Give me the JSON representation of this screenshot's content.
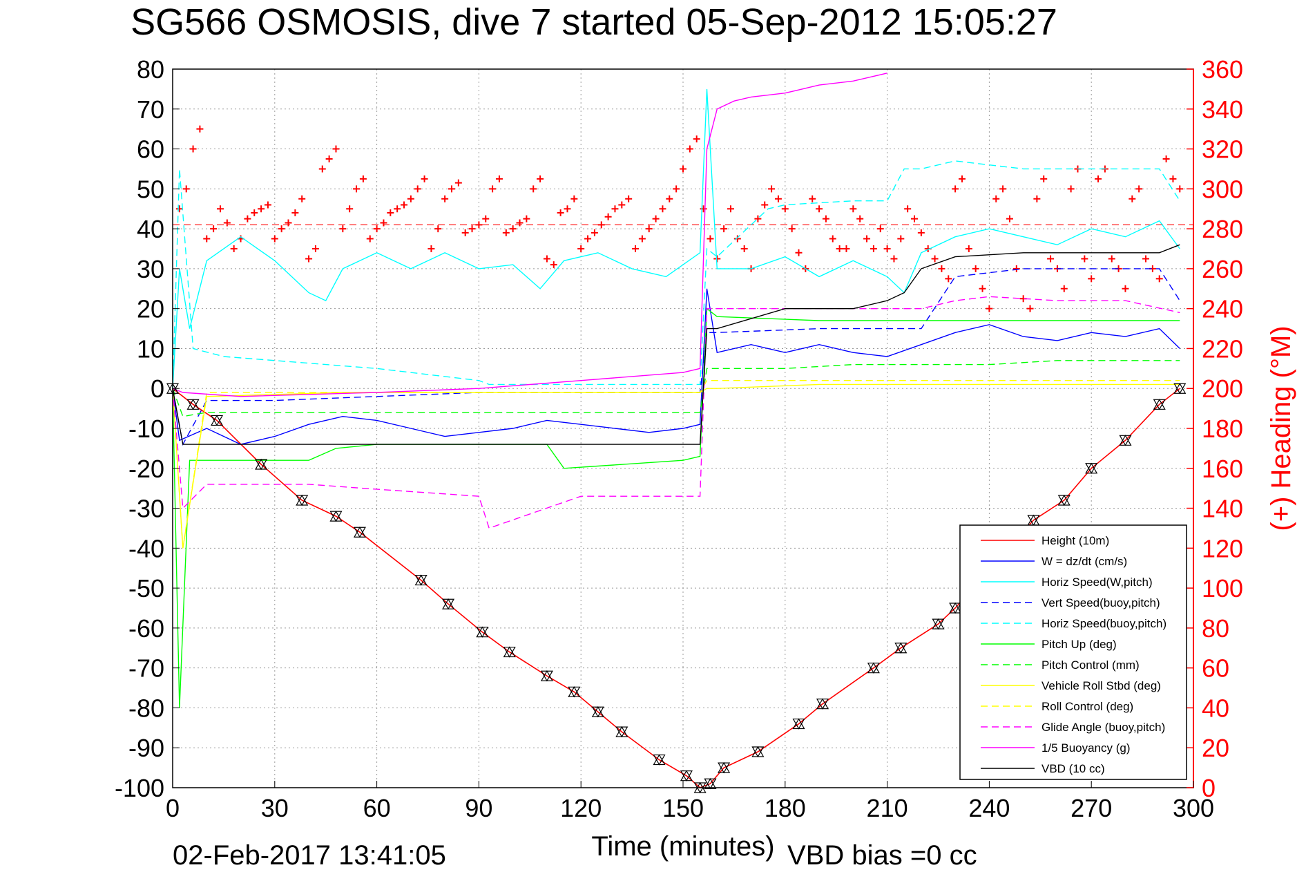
{
  "chart_data": {
    "type": "line",
    "title": "SG566 OSMOSIS, dive 7 started 05-Sep-2012 15:05:27",
    "xlabel": "Time (minutes)",
    "ylabel_right": "(+) Heading (°M)",
    "footer_left": "02-Feb-2017 13:41:05",
    "footer_right": "VBD bias =0 cc",
    "xlim": [
      0,
      300
    ],
    "ylim_left": [
      -100,
      80
    ],
    "ylim_right": [
      0,
      360
    ],
    "x_ticks": [
      "0",
      "30",
      "60",
      "90",
      "120",
      "150",
      "180",
      "210",
      "240",
      "270",
      "300"
    ],
    "y_ticks_left": [
      "80",
      "70",
      "60",
      "50",
      "40",
      "30",
      "20",
      "10",
      "0",
      "-10",
      "-20",
      "-30",
      "-40",
      "-50",
      "-60",
      "-70",
      "-80",
      "-90",
      "-100"
    ],
    "y_ticks_right": [
      "360",
      "340",
      "320",
      "300",
      "280",
      "260",
      "240",
      "220",
      "200",
      "180",
      "160",
      "140",
      "120",
      "100",
      "80",
      "60",
      "40",
      "20",
      "0"
    ],
    "grid": true,
    "legend_position": "bottom-right",
    "colors": {
      "red": "#ff0000",
      "blue": "#0000ff",
      "cyan": "#00ffff",
      "green": "#00ff00",
      "yellow": "#ffff00",
      "magenta": "#ff00ff",
      "black": "#000000"
    },
    "series": [
      {
        "name": "Height (10m)",
        "color": "#ff0000",
        "dash": false,
        "x": [
          0,
          6,
          13,
          26,
          38,
          48,
          55,
          73,
          81,
          91,
          99,
          110,
          118,
          125,
          132,
          143,
          151,
          155,
          158,
          162,
          172,
          184,
          191,
          206,
          214,
          225,
          230,
          253,
          262,
          270,
          280,
          290,
          296
        ],
        "y": [
          0,
          -4,
          -8,
          -19,
          -28,
          -32,
          -36,
          -48,
          -54,
          -61,
          -66,
          -72,
          -76,
          -81,
          -86,
          -93,
          -97,
          -100,
          -99,
          -95,
          -91,
          -84,
          -79,
          -70,
          -65,
          -59,
          -55,
          -33,
          -28,
          -20,
          -13,
          -4,
          0
        ]
      },
      {
        "name": "W = dz/dt (cm/s)",
        "color": "#0000ff",
        "dash": false,
        "x": [
          0,
          2,
          10,
          20,
          30,
          40,
          50,
          60,
          70,
          80,
          90,
          100,
          110,
          120,
          130,
          140,
          150,
          155,
          157,
          160,
          170,
          180,
          190,
          200,
          210,
          220,
          230,
          240,
          250,
          260,
          270,
          280,
          290,
          296
        ],
        "y": [
          0,
          -13,
          -10,
          -14,
          -12,
          -9,
          -7,
          -8,
          -10,
          -12,
          -11,
          -10,
          -8,
          -9,
          -10,
          -11,
          -10,
          -9,
          25,
          9,
          11,
          9,
          11,
          9,
          8,
          11,
          14,
          16,
          13,
          12,
          14,
          13,
          15,
          10
        ]
      },
      {
        "name": "Horiz Speed(W,pitch)",
        "color": "#00ffff",
        "dash": false,
        "x": [
          0,
          2,
          5,
          10,
          20,
          30,
          40,
          45,
          50,
          60,
          70,
          80,
          90,
          100,
          108,
          115,
          125,
          135,
          145,
          155,
          157,
          160,
          170,
          180,
          190,
          200,
          210,
          215,
          220,
          230,
          240,
          250,
          260,
          270,
          280,
          290,
          296
        ],
        "y": [
          0,
          30,
          15,
          32,
          38,
          32,
          24,
          22,
          30,
          34,
          30,
          34,
          30,
          31,
          25,
          32,
          34,
          30,
          28,
          34,
          75,
          30,
          30,
          33,
          28,
          32,
          28,
          24,
          34,
          38,
          40,
          38,
          36,
          40,
          38,
          42,
          35
        ]
      },
      {
        "name": "Vert Speed(buoy,pitch)",
        "color": "#0000ff",
        "dash": true,
        "x": [
          0,
          3,
          10,
          30,
          60,
          90,
          120,
          150,
          155,
          157,
          160,
          190,
          220,
          230,
          250,
          270,
          290,
          296
        ],
        "y": [
          0,
          -14,
          -3,
          -3,
          -2,
          -1,
          -1,
          -1,
          -1,
          14,
          14,
          15,
          15,
          28,
          30,
          30,
          30,
          22
        ]
      },
      {
        "name": "Horiz Speed(buoy,pitch)",
        "color": "#00ffff",
        "dash": true,
        "x": [
          0,
          2,
          6,
          15,
          30,
          60,
          90,
          93,
          120,
          150,
          155,
          157,
          160,
          175,
          180,
          200,
          210,
          215,
          220,
          230,
          240,
          250,
          270,
          290,
          296
        ],
        "y": [
          0,
          55,
          10,
          8,
          7,
          5,
          2,
          1,
          1,
          1,
          1,
          35,
          33,
          45,
          46,
          47,
          47,
          55,
          55,
          57,
          56,
          55,
          55,
          55,
          47
        ]
      },
      {
        "name": "Pitch Up (deg)",
        "color": "#00ff00",
        "dash": false,
        "x": [
          0,
          2,
          5,
          20,
          40,
          48,
          60,
          90,
          110,
          115,
          150,
          155,
          157,
          160,
          190,
          220,
          240,
          260,
          280,
          296
        ],
        "y": [
          0,
          -80,
          -18,
          -18,
          -18,
          -15,
          -14,
          -14,
          -14,
          -20,
          -18,
          -17,
          20,
          18,
          17,
          17,
          17,
          17,
          17,
          17
        ]
      },
      {
        "name": "Pitch Control (mm)",
        "color": "#00ff00",
        "dash": true,
        "x": [
          0,
          3,
          10,
          40,
          80,
          120,
          150,
          155,
          157,
          160,
          180,
          200,
          220,
          240,
          260,
          280,
          296
        ],
        "y": [
          0,
          -7,
          -6,
          -6,
          -6,
          -6,
          -6,
          -6,
          5,
          5,
          5,
          6,
          6,
          6,
          7,
          7,
          7
        ]
      },
      {
        "name": "Vehicle Roll Stbd (deg)",
        "color": "#ffff00",
        "dash": false,
        "x": [
          0,
          3,
          10,
          50,
          90,
          120,
          150,
          155,
          157,
          160,
          190,
          220,
          240,
          260,
          280,
          296
        ],
        "y": [
          0,
          -40,
          -2,
          -1,
          -1,
          -1,
          -1,
          -1,
          0,
          0,
          1,
          1,
          1,
          1,
          1,
          1
        ]
      },
      {
        "name": "Roll Control (deg)",
        "color": "#ffff00",
        "dash": true,
        "x": [
          0,
          3,
          10,
          50,
          90,
          120,
          150,
          155,
          157,
          160,
          190,
          220,
          240,
          260,
          280,
          296
        ],
        "y": [
          0,
          -40,
          -1,
          -1,
          -1,
          -1,
          -1,
          -1,
          2,
          2,
          2,
          2,
          2,
          2,
          2,
          2
        ]
      },
      {
        "name": "Glide Angle (buoy,pitch)",
        "color": "#ff00ff",
        "dash": true,
        "x": [
          0,
          3,
          10,
          40,
          56,
          90,
          93,
          120,
          150,
          155,
          157,
          160,
          180,
          200,
          220,
          230,
          240,
          260,
          280,
          296
        ],
        "y": [
          0,
          -30,
          -24,
          -24,
          -25,
          -27,
          -35,
          -27,
          -27,
          -27,
          20,
          20,
          20,
          20,
          20,
          22,
          23,
          22,
          22,
          19
        ]
      },
      {
        "name": "1/5 Buoyancy (g)",
        "color": "#ff00ff",
        "dash": false,
        "x": [
          0,
          3,
          20,
          60,
          90,
          120,
          150,
          155,
          157,
          160,
          165,
          170,
          180,
          185,
          190,
          200,
          205,
          210
        ],
        "y": [
          0,
          -1,
          -2,
          -1,
          0,
          2,
          4,
          5,
          60,
          70,
          72,
          73,
          74,
          75,
          76,
          77,
          78,
          79
        ]
      },
      {
        "name": "VBD (10 cc)",
        "color": "#000000",
        "dash": false,
        "x": [
          0,
          3,
          10,
          50,
          100,
          140,
          155,
          157,
          160,
          180,
          200,
          210,
          215,
          220,
          230,
          250,
          270,
          290,
          296
        ],
        "y": [
          0,
          -14,
          -14,
          -14,
          -14,
          -14,
          -14,
          15,
          15,
          20,
          20,
          22,
          24,
          30,
          33,
          34,
          34,
          34,
          36
        ]
      }
    ],
    "heading_series": {
      "name": "(+) Heading",
      "color": "#ff0000",
      "mean_line": 282,
      "x": [
        2,
        4,
        6,
        8,
        10,
        12,
        14,
        16,
        18,
        20,
        22,
        24,
        26,
        28,
        30,
        32,
        34,
        36,
        38,
        40,
        42,
        44,
        46,
        48,
        50,
        52,
        54,
        56,
        58,
        60,
        62,
        64,
        66,
        68,
        70,
        72,
        74,
        76,
        78,
        80,
        82,
        84,
        86,
        88,
        90,
        92,
        94,
        96,
        98,
        100,
        102,
        104,
        106,
        108,
        110,
        112,
        114,
        116,
        118,
        120,
        122,
        124,
        126,
        128,
        130,
        132,
        134,
        136,
        138,
        140,
        142,
        144,
        146,
        148,
        150,
        152,
        154,
        156,
        158,
        160,
        162,
        164,
        166,
        168,
        170,
        172,
        174,
        176,
        178,
        180,
        182,
        184,
        186,
        188,
        190,
        192,
        194,
        196,
        198,
        200,
        202,
        204,
        206,
        208,
        210,
        212,
        214,
        216,
        218,
        220,
        222,
        224,
        226,
        228,
        230,
        232,
        234,
        236,
        238,
        240,
        242,
        244,
        246,
        248,
        250,
        252,
        254,
        256,
        258,
        260,
        262,
        264,
        266,
        268,
        270,
        272,
        274,
        276,
        278,
        280,
        282,
        284,
        286,
        288,
        290,
        292,
        294,
        296
      ],
      "y": [
        290,
        300,
        320,
        330,
        275,
        280,
        290,
        283,
        270,
        275,
        285,
        288,
        290,
        292,
        275,
        280,
        283,
        288,
        295,
        265,
        270,
        310,
        315,
        320,
        280,
        290,
        300,
        305,
        275,
        280,
        283,
        288,
        290,
        292,
        295,
        300,
        305,
        270,
        280,
        295,
        300,
        303,
        278,
        280,
        282,
        285,
        300,
        305,
        278,
        280,
        283,
        285,
        300,
        305,
        265,
        262,
        288,
        290,
        295,
        270,
        275,
        278,
        282,
        286,
        290,
        292,
        295,
        270,
        275,
        280,
        285,
        290,
        295,
        300,
        310,
        320,
        325,
        290,
        275,
        265,
        280,
        290,
        275,
        270,
        260,
        285,
        292,
        300,
        295,
        290,
        280,
        268,
        260,
        295,
        290,
        285,
        275,
        270,
        270,
        290,
        285,
        275,
        270,
        280,
        270,
        265,
        275,
        290,
        285,
        278,
        270,
        265,
        260,
        255,
        300,
        305,
        270,
        260,
        250,
        240,
        295,
        300,
        285,
        260,
        245,
        240,
        295,
        305,
        265,
        260,
        250,
        300,
        310,
        265,
        255,
        305,
        310,
        265,
        260,
        250,
        295,
        300,
        265,
        260,
        255,
        315,
        305,
        300
      ]
    }
  }
}
